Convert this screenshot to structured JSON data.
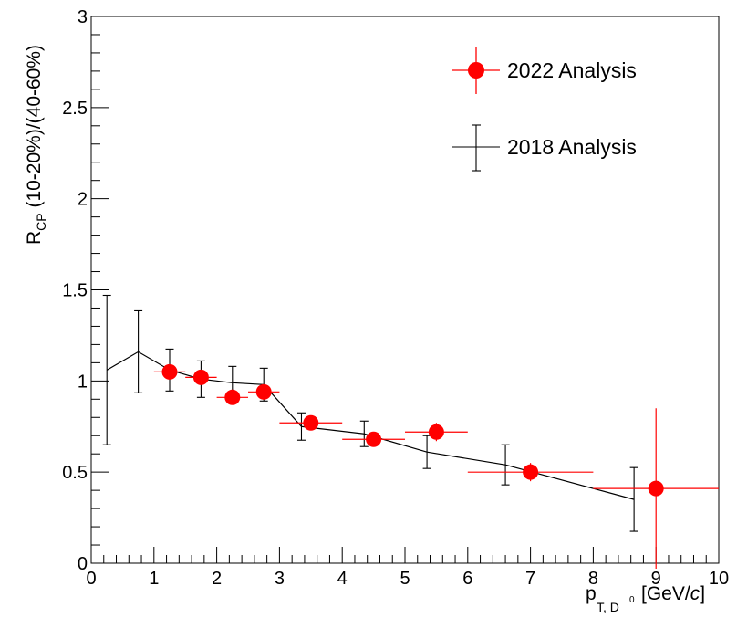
{
  "chart_data": {
    "type": "scatter",
    "xlabel_main": "p",
    "xlabel_sub": "T, D",
    "xlabel_sup": "0",
    "xlabel_unit_prefix": "[GeV/",
    "xlabel_unit_italic": "c",
    "xlabel_unit_suffix": "]",
    "ylabel_main": "R",
    "ylabel_sub": "CP",
    "ylabel_rest": " (10-20%)/(40-60%)",
    "xlim": [
      0,
      10
    ],
    "ylim": [
      0,
      3
    ],
    "x_ticks": [
      0,
      1,
      2,
      3,
      4,
      5,
      6,
      7,
      8,
      9,
      10
    ],
    "x_tick_labels": [
      "0",
      "1",
      "2",
      "3",
      "4",
      "5",
      "6",
      "7",
      "8",
      "9",
      "10"
    ],
    "y_ticks": [
      0,
      0.5,
      1,
      1.5,
      2,
      2.5,
      3
    ],
    "y_tick_labels": [
      "0",
      "0.5",
      "1",
      "1.5",
      "2",
      "2.5",
      "3"
    ],
    "grid": false,
    "legend_position": "top-right",
    "colors": {
      "series_2022": "#ff0000",
      "series_2018": "#000000"
    },
    "series": [
      {
        "name": "2022 Analysis",
        "marker": "circle",
        "points": [
          {
            "x": 1.25,
            "y": 1.05,
            "xerr": 0.25,
            "yerr": 0.0
          },
          {
            "x": 1.75,
            "y": 1.02,
            "xerr": 0.25,
            "yerr": 0.0
          },
          {
            "x": 2.25,
            "y": 0.91,
            "xerr": 0.25,
            "yerr": 0.0
          },
          {
            "x": 2.75,
            "y": 0.94,
            "xerr": 0.25,
            "yerr": 0.0
          },
          {
            "x": 3.5,
            "y": 0.77,
            "xerr": 0.5,
            "yerr": 0.0
          },
          {
            "x": 4.5,
            "y": 0.68,
            "xerr": 0.5,
            "yerr": 0.0
          },
          {
            "x": 5.5,
            "y": 0.72,
            "xerr": 0.5,
            "yerr": 0.05
          },
          {
            "x": 7.0,
            "y": 0.5,
            "xerr": 1.0,
            "yerr": 0.05
          },
          {
            "x": 9.0,
            "y": 0.41,
            "xerr": 1.0,
            "yerr": 0.44
          }
        ]
      },
      {
        "name": "2018 Analysis",
        "marker": "line",
        "points": [
          {
            "x": 0.25,
            "y": 1.06,
            "yerr": 0.41
          },
          {
            "x": 0.75,
            "y": 1.16,
            "yerr": 0.225
          },
          {
            "x": 1.25,
            "y": 1.06,
            "yerr": 0.115
          },
          {
            "x": 1.75,
            "y": 1.01,
            "yerr": 0.1
          },
          {
            "x": 2.25,
            "y": 0.99,
            "yerr": 0.09
          },
          {
            "x": 2.75,
            "y": 0.98,
            "yerr": 0.09
          },
          {
            "x": 3.35,
            "y": 0.75,
            "yerr": 0.075
          },
          {
            "x": 4.35,
            "y": 0.71,
            "yerr": 0.07
          },
          {
            "x": 5.35,
            "y": 0.61,
            "yerr": 0.09
          },
          {
            "x": 6.6,
            "y": 0.54,
            "yerr": 0.11
          },
          {
            "x": 8.65,
            "y": 0.35,
            "yerr": 0.175
          }
        ]
      }
    ]
  }
}
